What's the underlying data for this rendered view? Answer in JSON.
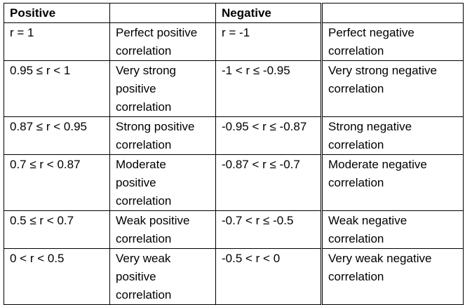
{
  "header": {
    "positive": "Positive",
    "empty1": "",
    "negative": "Negative",
    "empty2": ""
  },
  "rows": [
    {
      "pos_range": "r = 1",
      "pos_desc": "Perfect positive correlation",
      "neg_range": "r = -1",
      "neg_desc": "Perfect negative correlation"
    },
    {
      "pos_range": "0.95 ≤ r < 1",
      "pos_desc": "Very strong positive correlation",
      "neg_range": "-1 < r ≤ -0.95",
      "neg_desc": "Very strong negative correlation"
    },
    {
      "pos_range": "0.87  ≤ r < 0.95",
      "pos_desc": "Strong positive correlation",
      "neg_range": "-0.95 < r ≤ -0.87",
      "neg_desc": "Strong negative correlation"
    },
    {
      "pos_range": "0.7 ≤ r < 0.87",
      "pos_desc": "Moderate positive correlation",
      "neg_range": "-0.87 < r ≤ -0.7",
      "neg_desc": "Moderate negative correlation"
    },
    {
      "pos_range": "0.5 ≤ r < 0.7",
      "pos_desc": "Weak positive correlation",
      "neg_range": "-0.7 < r  ≤ -0.5",
      "neg_desc": "Weak negative correlation"
    },
    {
      "pos_range": "0 < r < 0.5",
      "pos_desc": "Very weak positive correlation",
      "neg_range": "-0.5 < r  < 0",
      "neg_desc": "Very weak negative correlation"
    }
  ]
}
